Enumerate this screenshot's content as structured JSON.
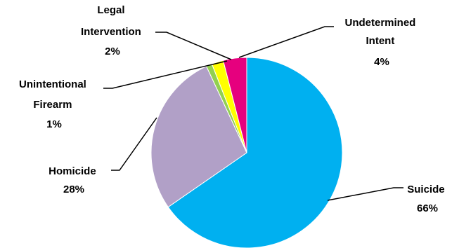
{
  "chart_data": {
    "type": "pie",
    "title": "",
    "slices": [
      {
        "label": "Suicide",
        "value_label": "66%",
        "value": 66,
        "color": "#00B0F0"
      },
      {
        "label": "Homicide",
        "value_label": "28%",
        "value": 28,
        "color": "#B1A0C7"
      },
      {
        "label": "Unintentional Firearm",
        "value_label": "1%",
        "value": 1,
        "color": "#92D050"
      },
      {
        "label": "Legal Intervention",
        "value_label": "2%",
        "value": 2,
        "color": "#FFFF00"
      },
      {
        "label": "Undetermined Intent",
        "value_label": "4%",
        "value": 4,
        "color": "#E6007E"
      }
    ]
  }
}
